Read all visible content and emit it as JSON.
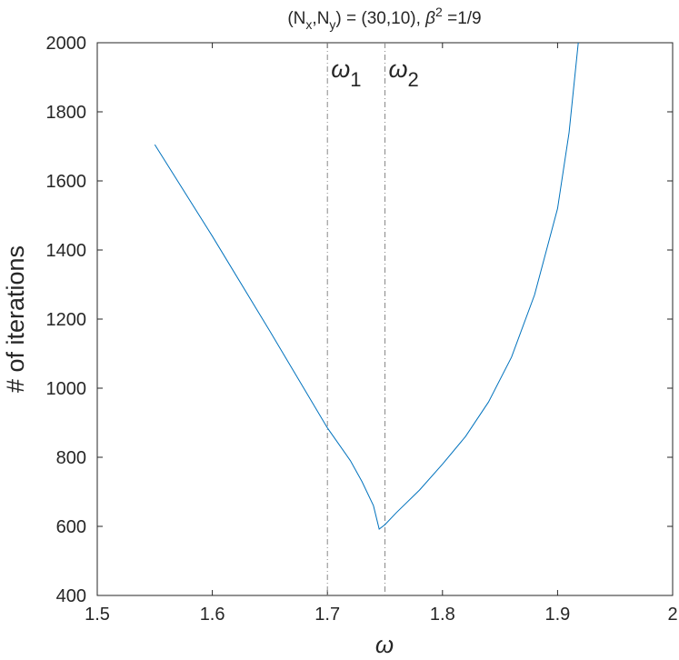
{
  "chart_data": {
    "type": "line",
    "title_parts": [
      "(N",
      "x",
      ",N",
      "y",
      ") = (30,10),  ",
      "β",
      "2",
      " =1/9"
    ],
    "x_label": "ω",
    "y_label": "# of iterations",
    "x": [
      1.55,
      1.6,
      1.65,
      1.7,
      1.72,
      1.73,
      1.74,
      1.745,
      1.75,
      1.76,
      1.78,
      1.8,
      1.82,
      1.84,
      1.86,
      1.88,
      1.9,
      1.91,
      1.918
    ],
    "series": [
      {
        "name": "iterations",
        "color": "#0072bd",
        "values": [
          1705,
          1440,
          1165,
          885,
          790,
          730,
          660,
          592,
          605,
          640,
          705,
          780,
          860,
          960,
          1090,
          1270,
          1520,
          1740,
          2000
        ]
      }
    ],
    "xlim": [
      1.5,
      2
    ],
    "xticks": [
      1.5,
      1.6,
      1.7,
      1.8,
      1.9,
      2
    ],
    "ylim": [
      400,
      2000
    ],
    "yticks": [
      400,
      600,
      800,
      1000,
      1200,
      1400,
      1600,
      1800,
      2000
    ],
    "annotations": [
      {
        "x": 1.7,
        "label": "ω",
        "sub": "1"
      },
      {
        "x": 1.75,
        "label": "ω",
        "sub": "2"
      }
    ]
  }
}
